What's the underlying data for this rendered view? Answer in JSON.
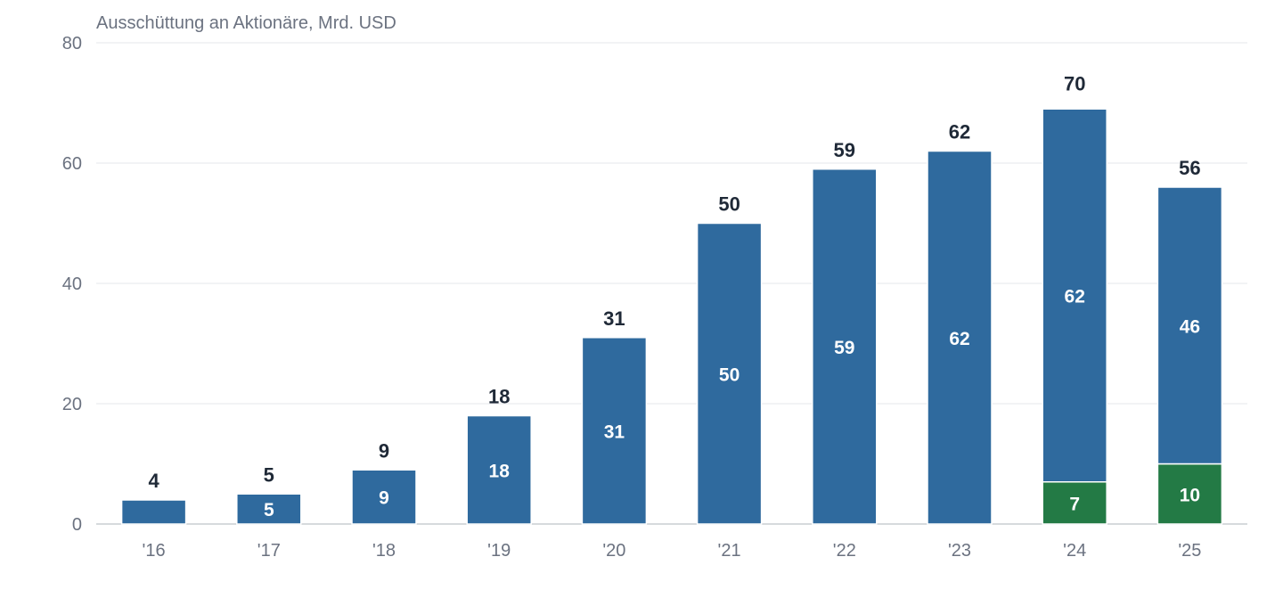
{
  "chart_data": {
    "type": "bar",
    "stacked": true,
    "title": "",
    "ylabel": "Ausschüttung an Aktionäre, Mrd. USD",
    "xlabel": "",
    "categories": [
      "'16",
      "'17",
      "'18",
      "'19",
      "'20",
      "'21",
      "'22",
      "'23",
      "'24",
      "'25"
    ],
    "ylim": [
      0,
      80
    ],
    "yticks": [
      0,
      20,
      40,
      60,
      80
    ],
    "grid": true,
    "legend": "none",
    "series": [
      {
        "values": [
          0,
          0,
          0,
          0,
          0,
          0,
          0,
          0,
          7,
          10
        ],
        "labels": [
          "",
          "",
          "",
          "",
          "",
          "",
          "",
          "",
          "7",
          "10"
        ],
        "color": "#237a45"
      },
      {
        "values": [
          4,
          5,
          9,
          18,
          31,
          50,
          59,
          62,
          62,
          46
        ],
        "labels": [
          "",
          "5",
          "9",
          "18",
          "31",
          "50",
          "59",
          "62",
          "62",
          "46"
        ],
        "color": "#2f6a9e"
      }
    ],
    "totals": [
      4,
      5,
      9,
      18,
      31,
      50,
      59,
      62,
      70,
      56
    ],
    "total_labels": [
      "4",
      "5",
      "9",
      "18",
      "31",
      "50",
      "59",
      "62",
      "70",
      "56"
    ]
  }
}
